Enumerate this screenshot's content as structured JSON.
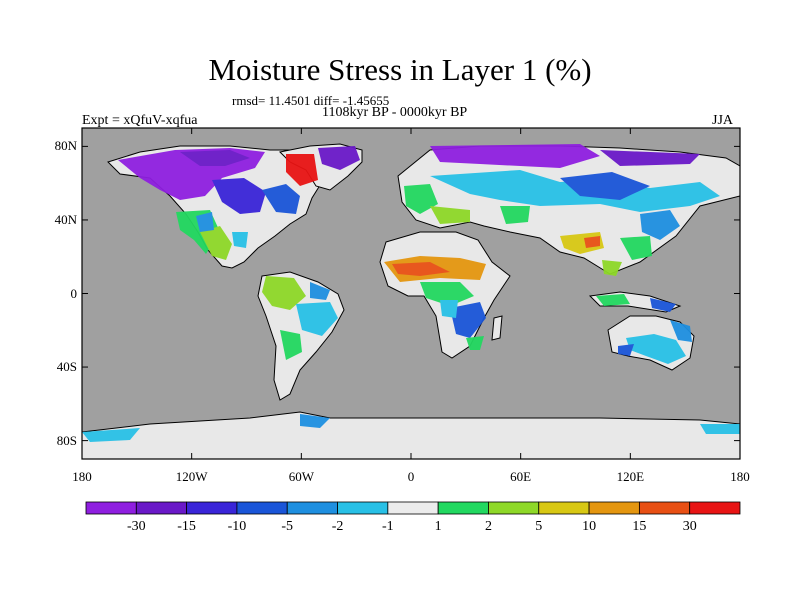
{
  "title": "Moisture Stress in Layer 1 (%)",
  "stats": "rmsd= 11.4501 diff= -1.45655",
  "period": "1108kyr BP - 0000kyr BP",
  "experiment": "Expt = xQfuV-xqfua",
  "season": "JJA",
  "map": {
    "ocean_color": "#a0a0a0",
    "land_color": "#e8e8e8",
    "lon_range": [
      -180,
      180
    ],
    "lat_range": [
      -90,
      90
    ],
    "lat_labels": [
      {
        "lat": 80,
        "label": "80N"
      },
      {
        "lat": 40,
        "label": "40N"
      },
      {
        "lat": 0,
        "label": "0"
      },
      {
        "lat": -40,
        "label": "40S"
      },
      {
        "lat": -80,
        "label": "80S"
      }
    ],
    "lon_labels": [
      {
        "lon": -180,
        "label": "180"
      },
      {
        "lon": -120,
        "label": "120W"
      },
      {
        "lon": -60,
        "label": "60W"
      },
      {
        "lon": 0,
        "label": "0"
      },
      {
        "lon": 60,
        "label": "60E"
      },
      {
        "lon": 120,
        "label": "120E"
      },
      {
        "lon": 180,
        "label": "180"
      }
    ]
  },
  "colorbar": {
    "colors": [
      "#8f1fe0",
      "#6a19c8",
      "#3a25d8",
      "#1a55d8",
      "#1e8fe0",
      "#28c0e6",
      "#ececec",
      "#22d860",
      "#8ed828",
      "#d8c814",
      "#e49610",
      "#e85014",
      "#e81414"
    ],
    "labels": [
      "-30",
      "-15",
      "-10",
      "-5",
      "-2",
      "-1",
      "1",
      "2",
      "5",
      "10",
      "15",
      "30"
    ]
  }
}
